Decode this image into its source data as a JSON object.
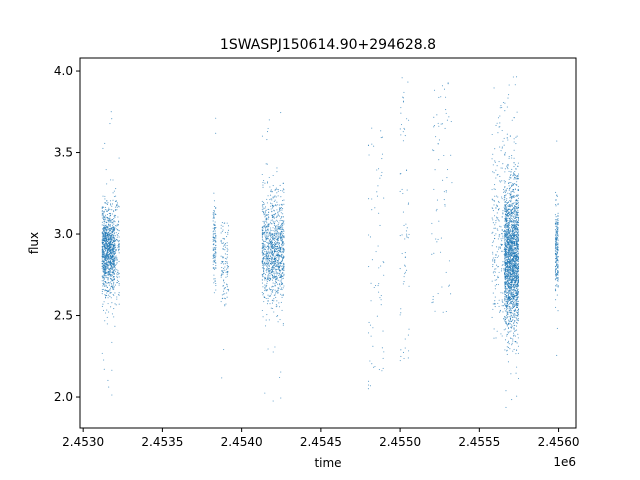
{
  "chart_data": {
    "type": "scatter",
    "title": "1SWASPJ150614.90+294628.8",
    "xlabel": "time",
    "ylabel": "flux",
    "x_offset_label": "1e6",
    "xlim": [
      2452980,
      2456110
    ],
    "ylim": [
      1.81,
      4.08
    ],
    "xticks": [
      2453000,
      2453500,
      2454000,
      2454500,
      2455000,
      2455500,
      2456000
    ],
    "xtick_labels": [
      "2.4530",
      "2.4535",
      "2.4540",
      "2.4545",
      "2.4550",
      "2.4555",
      "2.4560"
    ],
    "yticks": [
      2.0,
      2.5,
      3.0,
      3.5,
      4.0
    ],
    "ytick_labels": [
      "2.0",
      "2.5",
      "3.0",
      "3.5",
      "4.0"
    ],
    "grid": false,
    "marker_color": "#1f77b4",
    "clusters": [
      {
        "t_start": 2453120,
        "t_end": 2453200,
        "flux_center": 2.9,
        "flux_spread": 0.13,
        "flux_min": 1.98,
        "flux_max": 3.84,
        "density": "high"
      },
      {
        "t_start": 2453200,
        "t_end": 2453230,
        "flux_center": 2.9,
        "flux_spread": 0.18,
        "flux_min": 2.3,
        "flux_max": 3.55,
        "density": "low"
      },
      {
        "t_start": 2453820,
        "t_end": 2453840,
        "flux_center": 2.95,
        "flux_spread": 0.12,
        "flux_min": 2.55,
        "flux_max": 3.85,
        "density": "low"
      },
      {
        "t_start": 2453870,
        "t_end": 2453920,
        "flux_center": 2.85,
        "flux_spread": 0.15,
        "flux_min": 2.1,
        "flux_max": 3.1,
        "density": "low"
      },
      {
        "t_start": 2454130,
        "t_end": 2454270,
        "flux_center": 2.9,
        "flux_spread": 0.16,
        "flux_min": 1.9,
        "flux_max": 3.75,
        "density": "high"
      },
      {
        "t_start": 2454800,
        "t_end": 2454900,
        "flux_center": 2.9,
        "flux_spread": 0.35,
        "flux_min": 2.05,
        "flux_max": 3.65,
        "density": "sparse"
      },
      {
        "t_start": 2455000,
        "t_end": 2455060,
        "flux_center": 3.05,
        "flux_spread": 0.4,
        "flux_min": 2.2,
        "flux_max": 3.97,
        "density": "sparse"
      },
      {
        "t_start": 2455200,
        "t_end": 2455330,
        "flux_center": 3.2,
        "flux_spread": 0.35,
        "flux_min": 2.5,
        "flux_max": 3.93,
        "density": "sparse"
      },
      {
        "t_start": 2455580,
        "t_end": 2455660,
        "flux_center": 3.0,
        "flux_spread": 0.35,
        "flux_min": 2.3,
        "flux_max": 3.97,
        "density": "medium"
      },
      {
        "t_start": 2455660,
        "t_end": 2455750,
        "flux_center": 2.85,
        "flux_spread": 0.22,
        "flux_min": 1.9,
        "flux_max": 3.97,
        "density": "very-high"
      },
      {
        "t_start": 2455980,
        "t_end": 2456000,
        "flux_center": 2.9,
        "flux_spread": 0.14,
        "flux_min": 2.05,
        "flux_max": 3.8,
        "density": "medium"
      }
    ]
  }
}
